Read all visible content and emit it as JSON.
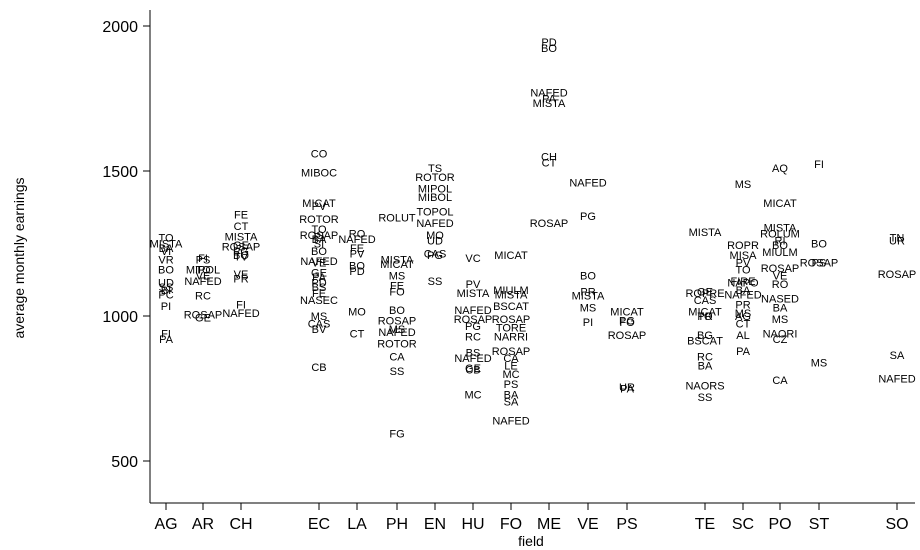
{
  "chart_data": {
    "type": "scatter",
    "title": "",
    "xlabel": "field",
    "ylabel": "average monthly earnings",
    "categories": [
      "AG",
      "AR",
      "CH",
      "EC",
      "LA",
      "PH",
      "EN",
      "HU",
      "FO",
      "ME",
      "VE",
      "PS",
      "TE",
      "SC",
      "PO",
      "ST",
      "SO"
    ],
    "ylim": [
      440,
      2070
    ],
    "y_ticks": [
      500,
      1000,
      1500,
      2000
    ],
    "grid": false,
    "legend": "none",
    "marker_style": "text labels (university codes) at each point",
    "series": [
      {
        "name": "",
        "points": [
          {
            "x": "AG",
            "label": "TO",
            "y": 1270
          },
          {
            "x": "AG",
            "label": "MISTA",
            "y": 1250
          },
          {
            "x": "AG",
            "label": "BA",
            "y": 1235
          },
          {
            "x": "AG",
            "label": "VI",
            "y": 1225
          },
          {
            "x": "AG",
            "label": "VR",
            "y": 1195
          },
          {
            "x": "AG",
            "label": "BO",
            "y": 1160
          },
          {
            "x": "AG",
            "label": "UD",
            "y": 1115
          },
          {
            "x": "AG",
            "label": "SS",
            "y": 1100
          },
          {
            "x": "AG",
            "label": "BI",
            "y": 1090
          },
          {
            "x": "AG",
            "label": "PC",
            "y": 1075
          },
          {
            "x": "AG",
            "label": "PI",
            "y": 1035
          },
          {
            "x": "AG",
            "label": "FI",
            "y": 940
          },
          {
            "x": "AG",
            "label": "PA",
            "y": 920
          },
          {
            "x": "AR",
            "label": "FI",
            "y": 1200
          },
          {
            "x": "AR",
            "label": "PS",
            "y": 1195
          },
          {
            "x": "AR",
            "label": "MIPOL",
            "y": 1160
          },
          {
            "x": "AR",
            "label": "TO",
            "y": 1160
          },
          {
            "x": "AR",
            "label": "VE",
            "y": 1140
          },
          {
            "x": "AR",
            "label": "NAFED",
            "y": 1120
          },
          {
            "x": "AR",
            "label": "RC",
            "y": 1070
          },
          {
            "x": "AR",
            "label": "ROSAP",
            "y": 1005
          },
          {
            "x": "AR",
            "label": "GE",
            "y": 995
          },
          {
            "x": "CH",
            "label": "FE",
            "y": 1350
          },
          {
            "x": "CH",
            "label": "CT",
            "y": 1310
          },
          {
            "x": "CH",
            "label": "MISTA",
            "y": 1275
          },
          {
            "x": "CH",
            "label": "ROSAP",
            "y": 1240
          },
          {
            "x": "CH",
            "label": "GE",
            "y": 1245
          },
          {
            "x": "CH",
            "label": "PG",
            "y": 1225
          },
          {
            "x": "CH",
            "label": "BO",
            "y": 1210
          },
          {
            "x": "CH",
            "label": "TV",
            "y": 1205
          },
          {
            "x": "CH",
            "label": "VE",
            "y": 1145
          },
          {
            "x": "CH",
            "label": "PR",
            "y": 1130
          },
          {
            "x": "CH",
            "label": "FI",
            "y": 1040
          },
          {
            "x": "CH",
            "label": "NAFED",
            "y": 1010
          },
          {
            "x": "EC",
            "label": "CO",
            "y": 1560
          },
          {
            "x": "EC",
            "label": "MIBOC",
            "y": 1495
          },
          {
            "x": "EC",
            "label": "MICAT",
            "y": 1390
          },
          {
            "x": "EC",
            "label": "PV",
            "y": 1380
          },
          {
            "x": "EC",
            "label": "ROTOR",
            "y": 1335
          },
          {
            "x": "EC",
            "label": "TO",
            "y": 1300
          },
          {
            "x": "EC",
            "label": "ROSAP",
            "y": 1280
          },
          {
            "x": "EC",
            "label": "PI",
            "y": 1275
          },
          {
            "x": "EC",
            "label": "BA",
            "y": 1265
          },
          {
            "x": "EC",
            "label": "SI",
            "y": 1250
          },
          {
            "x": "EC",
            "label": "BO",
            "y": 1225
          },
          {
            "x": "EC",
            "label": "NAFED",
            "y": 1190
          },
          {
            "x": "EC",
            "label": "VE",
            "y": 1185
          },
          {
            "x": "EC",
            "label": "GE",
            "y": 1150
          },
          {
            "x": "EC",
            "label": "PA",
            "y": 1135
          },
          {
            "x": "EC",
            "label": "PD",
            "y": 1115
          },
          {
            "x": "EC",
            "label": "BS",
            "y": 1100
          },
          {
            "x": "EC",
            "label": "FE",
            "y": 1080
          },
          {
            "x": "EC",
            "label": "NASEC",
            "y": 1055
          },
          {
            "x": "EC",
            "label": "MS",
            "y": 1000
          },
          {
            "x": "EC",
            "label": "CAS",
            "y": 975
          },
          {
            "x": "EC",
            "label": "BV",
            "y": 955
          },
          {
            "x": "EC",
            "label": "CB",
            "y": 825
          },
          {
            "x": "LA",
            "label": "RO",
            "y": 1285
          },
          {
            "x": "LA",
            "label": "NAFED",
            "y": 1265
          },
          {
            "x": "LA",
            "label": "FE",
            "y": 1235
          },
          {
            "x": "LA",
            "label": "PV",
            "y": 1215
          },
          {
            "x": "LA",
            "label": "BO",
            "y": 1175
          },
          {
            "x": "LA",
            "label": "PD",
            "y": 1155
          },
          {
            "x": "LA",
            "label": "MO",
            "y": 1015
          },
          {
            "x": "LA",
            "label": "CT",
            "y": 940
          },
          {
            "x": "PH",
            "label": "ROLUT",
            "y": 1340
          },
          {
            "x": "PH",
            "label": "MISTA",
            "y": 1195
          },
          {
            "x": "PH",
            "label": "MICAT",
            "y": 1180
          },
          {
            "x": "PH",
            "label": "MS",
            "y": 1140
          },
          {
            "x": "PH",
            "label": "FE",
            "y": 1105
          },
          {
            "x": "PH",
            "label": "FO",
            "y": 1085
          },
          {
            "x": "PH",
            "label": "BO",
            "y": 1020
          },
          {
            "x": "PH",
            "label": "ROSAP",
            "y": 985
          },
          {
            "x": "PH",
            "label": "MS",
            "y": 955
          },
          {
            "x": "PH",
            "label": "NAFED",
            "y": 945
          },
          {
            "x": "PH",
            "label": "ROTOR",
            "y": 905
          },
          {
            "x": "PH",
            "label": "CA",
            "y": 860
          },
          {
            "x": "PH",
            "label": "SS",
            "y": 810
          },
          {
            "x": "PH",
            "label": "FG",
            "y": 595
          },
          {
            "x": "EN",
            "label": "TS",
            "y": 1510
          },
          {
            "x": "EN",
            "label": "ROTOR",
            "y": 1480
          },
          {
            "x": "EN",
            "label": "MIPOL",
            "y": 1440
          },
          {
            "x": "EN",
            "label": "MIBOL",
            "y": 1410
          },
          {
            "x": "EN",
            "label": "TOPOL",
            "y": 1360
          },
          {
            "x": "EN",
            "label": "NAFED",
            "y": 1320
          },
          {
            "x": "EN",
            "label": "MO",
            "y": 1280
          },
          {
            "x": "EN",
            "label": "UD",
            "y": 1260
          },
          {
            "x": "EN",
            "label": "CAS",
            "y": 1215
          },
          {
            "x": "EN",
            "label": "PG",
            "y": 1210
          },
          {
            "x": "EN",
            "label": "SS",
            "y": 1120
          },
          {
            "x": "HU",
            "label": "VC",
            "y": 1200
          },
          {
            "x": "HU",
            "label": "PV",
            "y": 1110
          },
          {
            "x": "HU",
            "label": "MISTA",
            "y": 1080
          },
          {
            "x": "HU",
            "label": "NAFED",
            "y": 1020
          },
          {
            "x": "HU",
            "label": "ROSAP",
            "y": 990
          },
          {
            "x": "HU",
            "label": "PG",
            "y": 965
          },
          {
            "x": "HU",
            "label": "RC",
            "y": 930
          },
          {
            "x": "HU",
            "label": "BS",
            "y": 875
          },
          {
            "x": "HU",
            "label": "NAFED",
            "y": 855
          },
          {
            "x": "HU",
            "label": "GE",
            "y": 820
          },
          {
            "x": "HU",
            "label": "CB",
            "y": 815
          },
          {
            "x": "HU",
            "label": "MC",
            "y": 730
          },
          {
            "x": "FO",
            "label": "MICAT",
            "y": 1210
          },
          {
            "x": "FO",
            "label": "MIULM",
            "y": 1090
          },
          {
            "x": "FO",
            "label": "MISTA",
            "y": 1075
          },
          {
            "x": "FO",
            "label": "BSCAT",
            "y": 1035
          },
          {
            "x": "FO",
            "label": "ROSAP",
            "y": 990
          },
          {
            "x": "FO",
            "label": "TORE",
            "y": 960
          },
          {
            "x": "FO",
            "label": "NARRI",
            "y": 930
          },
          {
            "x": "FO",
            "label": "ROSAP",
            "y": 880
          },
          {
            "x": "FO",
            "label": "CA",
            "y": 855
          },
          {
            "x": "FO",
            "label": "LE",
            "y": 830
          },
          {
            "x": "FO",
            "label": "MC",
            "y": 800
          },
          {
            "x": "FO",
            "label": "PS",
            "y": 765
          },
          {
            "x": "FO",
            "label": "BA",
            "y": 730
          },
          {
            "x": "FO",
            "label": "SA",
            "y": 705
          },
          {
            "x": "FO",
            "label": "NAFED",
            "y": 640
          },
          {
            "x": "ME",
            "label": "PD",
            "y": 1945
          },
          {
            "x": "ME",
            "label": "BO",
            "y": 1925
          },
          {
            "x": "ME",
            "label": "NAFED",
            "y": 1770
          },
          {
            "x": "ME",
            "label": "PA",
            "y": 1750
          },
          {
            "x": "ME",
            "label": "MISTA",
            "y": 1735
          },
          {
            "x": "ME",
            "label": "CH",
            "y": 1550
          },
          {
            "x": "ME",
            "label": "CT",
            "y": 1530
          },
          {
            "x": "ME",
            "label": "ROSAP",
            "y": 1320
          },
          {
            "x": "VE",
            "label": "NAFED",
            "y": 1460
          },
          {
            "x": "VE",
            "label": "PG",
            "y": 1345
          },
          {
            "x": "VE",
            "label": "BO",
            "y": 1140
          },
          {
            "x": "VE",
            "label": "PR",
            "y": 1085
          },
          {
            "x": "VE",
            "label": "MISTA",
            "y": 1070
          },
          {
            "x": "VE",
            "label": "MS",
            "y": 1030
          },
          {
            "x": "VE",
            "label": "PI",
            "y": 980
          },
          {
            "x": "PS",
            "label": "MICAT",
            "y": 1015
          },
          {
            "x": "PS",
            "label": "PG",
            "y": 985
          },
          {
            "x": "PS",
            "label": "FO",
            "y": 980
          },
          {
            "x": "PS",
            "label": "ROSAP",
            "y": 935
          },
          {
            "x": "PS",
            "label": "UR",
            "y": 755
          },
          {
            "x": "PS",
            "label": "PA",
            "y": 750
          },
          {
            "x": "TE",
            "label": "MISTA",
            "y": 1290
          },
          {
            "x": "TE",
            "label": "ROPRE",
            "y": 1080
          },
          {
            "x": "TE",
            "label": "GE",
            "y": 1085
          },
          {
            "x": "TE",
            "label": "CAS",
            "y": 1055
          },
          {
            "x": "TE",
            "label": "MICAT",
            "y": 1015
          },
          {
            "x": "TE",
            "label": "TO",
            "y": 1000
          },
          {
            "x": "TE",
            "label": "PR",
            "y": 1000
          },
          {
            "x": "TE",
            "label": "BG",
            "y": 935
          },
          {
            "x": "TE",
            "label": "BSCAT",
            "y": 915
          },
          {
            "x": "TE",
            "label": "RC",
            "y": 860
          },
          {
            "x": "TE",
            "label": "BA",
            "y": 830
          },
          {
            "x": "TE",
            "label": "NAORS",
            "y": 760
          },
          {
            "x": "TE",
            "label": "SS",
            "y": 720
          },
          {
            "x": "SC",
            "label": "MS",
            "y": 1455
          },
          {
            "x": "SC",
            "label": "ROPR",
            "y": 1245
          },
          {
            "x": "SC",
            "label": "MISA",
            "y": 1210
          },
          {
            "x": "SC",
            "label": "PV",
            "y": 1185
          },
          {
            "x": "SC",
            "label": "TO",
            "y": 1160
          },
          {
            "x": "SC",
            "label": "FIRE",
            "y": 1120
          },
          {
            "x": "SC",
            "label": "NAPO",
            "y": 1115
          },
          {
            "x": "SC",
            "label": "BA",
            "y": 1090
          },
          {
            "x": "SC",
            "label": "NAFED",
            "y": 1075
          },
          {
            "x": "SC",
            "label": "PR",
            "y": 1040
          },
          {
            "x": "SC",
            "label": "MS",
            "y": 1010
          },
          {
            "x": "SC",
            "label": "AG",
            "y": 1000
          },
          {
            "x": "SC",
            "label": "CT",
            "y": 975
          },
          {
            "x": "SC",
            "label": "AL",
            "y": 935
          },
          {
            "x": "SC",
            "label": "PA",
            "y": 880
          },
          {
            "x": "PO",
            "label": "AQ",
            "y": 1510
          },
          {
            "x": "PO",
            "label": "MICAT",
            "y": 1390
          },
          {
            "x": "PO",
            "label": "MISTA",
            "y": 1305
          },
          {
            "x": "PO",
            "label": "ROLUM",
            "y": 1285
          },
          {
            "x": "PO",
            "label": "RI",
            "y": 1260
          },
          {
            "x": "PO",
            "label": "BO",
            "y": 1245
          },
          {
            "x": "PO",
            "label": "MIULM",
            "y": 1220
          },
          {
            "x": "PO",
            "label": "ROSAP",
            "y": 1165
          },
          {
            "x": "PO",
            "label": "VE",
            "y": 1140
          },
          {
            "x": "PO",
            "label": "RO",
            "y": 1110
          },
          {
            "x": "PO",
            "label": "NASED",
            "y": 1060
          },
          {
            "x": "PO",
            "label": "BA",
            "y": 1030
          },
          {
            "x": "PO",
            "label": "MS",
            "y": 990
          },
          {
            "x": "PO",
            "label": "NAORI",
            "y": 940
          },
          {
            "x": "PO",
            "label": "CZ",
            "y": 920
          },
          {
            "x": "PO",
            "label": "CA",
            "y": 780
          },
          {
            "x": "ST",
            "label": "FI",
            "y": 1525
          },
          {
            "x": "ST",
            "label": "BO",
            "y": 1250
          },
          {
            "x": "ST",
            "label": "PS",
            "y": 1185
          },
          {
            "x": "ST",
            "label": "ROSAP",
            "y": 1185
          },
          {
            "x": "ST",
            "label": "MS",
            "y": 840
          },
          {
            "x": "SO",
            "label": "TN",
            "y": 1270
          },
          {
            "x": "SO",
            "label": "UR",
            "y": 1260
          },
          {
            "x": "SO",
            "label": "ROSAP",
            "y": 1145
          },
          {
            "x": "SO",
            "label": "SA",
            "y": 865
          },
          {
            "x": "SO",
            "label": "NAFED",
            "y": 785
          }
        ]
      }
    ]
  }
}
